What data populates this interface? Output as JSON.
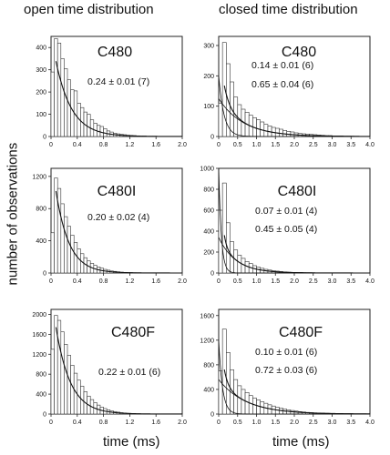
{
  "headers": {
    "left_column": "open time distribution",
    "right_column": "closed time distribution"
  },
  "axes": {
    "ylabel": "number of observations",
    "xlabel_left": "time (ms)",
    "xlabel_right": "time (ms)"
  },
  "chart_data": [
    {
      "type": "bar",
      "panel": "open-C480",
      "title": "C480",
      "annotations": [
        "0.24 ± 0.01 (7)"
      ],
      "xlim": [
        0,
        2.0
      ],
      "ylim": [
        0,
        450
      ],
      "xticks": [
        "0",
        "0.4",
        "0.8",
        "1.2",
        "1.6",
        "2.0"
      ],
      "xtick_values": [
        0,
        0.4,
        0.8,
        1.2,
        1.6,
        2.0
      ],
      "yticks": [
        "0",
        "100",
        "200",
        "300",
        "400"
      ],
      "ytick_values": [
        0,
        100,
        200,
        300,
        400
      ],
      "bin_width": 0.05,
      "values": [
        290,
        440,
        420,
        350,
        305,
        255,
        210,
        205,
        150,
        130,
        110,
        100,
        75,
        60,
        50,
        45,
        35,
        25,
        20,
        15,
        12,
        10,
        8,
        6,
        5,
        4,
        3,
        2,
        2,
        1,
        1,
        1
      ],
      "fits": [
        {
          "a": 463,
          "tau": 0.24
        }
      ]
    },
    {
      "type": "bar",
      "panel": "closed-C480",
      "title": "C480",
      "annotations": [
        "0.14 ± 0.01 (6)",
        "0.65 ± 0.04 (6)"
      ],
      "xlim": [
        0,
        4.0
      ],
      "ylim": [
        0,
        330
      ],
      "xticks": [
        "0",
        "0.5",
        "1.0",
        "1.5",
        "2.0",
        "2.5",
        "3.0",
        "3.5",
        "4.0"
      ],
      "xtick_values": [
        0,
        0.5,
        1.0,
        1.5,
        2.0,
        2.5,
        3.0,
        3.5,
        4.0
      ],
      "yticks": [
        "0",
        "100",
        "200",
        "300"
      ],
      "ytick_values": [
        0,
        100,
        200,
        300
      ],
      "bin_width": 0.1,
      "values": [
        110,
        310,
        240,
        180,
        130,
        105,
        90,
        80,
        70,
        62,
        55,
        48,
        40,
        35,
        30,
        27,
        24,
        20,
        17,
        15,
        12,
        10,
        9,
        8,
        7,
        6,
        5,
        4,
        3,
        3,
        2,
        2,
        2,
        1,
        1
      ],
      "fits": [
        {
          "a": 200,
          "tau": 0.14
        },
        {
          "a": 125,
          "tau": 0.65
        }
      ]
    },
    {
      "type": "bar",
      "panel": "open-C480I",
      "title": "C480I",
      "annotations": [
        "0.20 ± 0.02 (4)"
      ],
      "xlim": [
        0,
        2.0
      ],
      "ylim": [
        0,
        1300
      ],
      "xticks": [
        "0",
        "0.4",
        "0.8",
        "1.2",
        "1.6",
        "2.0"
      ],
      "xtick_values": [
        0,
        0.4,
        0.8,
        1.2,
        1.6,
        2.0
      ],
      "yticks": [
        "0",
        "400",
        "800",
        "1200"
      ],
      "ytick_values": [
        0,
        400,
        800,
        1200
      ],
      "bin_width": 0.05,
      "values": [
        500,
        1180,
        1050,
        860,
        700,
        580,
        470,
        380,
        300,
        240,
        190,
        150,
        120,
        95,
        75,
        60,
        45,
        35,
        25,
        20,
        15,
        10,
        8,
        6,
        4,
        3,
        2,
        1
      ],
      "fits": [
        {
          "a": 1480,
          "tau": 0.2
        }
      ]
    },
    {
      "type": "bar",
      "panel": "closed-C480I",
      "title": "C480I",
      "annotations": [
        "0.07 ± 0.01 (4)",
        "0.45 ± 0.05 (4)"
      ],
      "xlim": [
        0,
        4.0
      ],
      "ylim": [
        0,
        1000
      ],
      "xticks": [
        "0",
        "0.5",
        "1.0",
        "1.5",
        "2.0",
        "2.5",
        "3.0",
        "3.5",
        "4.0"
      ],
      "xtick_values": [
        0,
        0.5,
        1.0,
        1.5,
        2.0,
        2.5,
        3.0,
        3.5,
        4.0
      ],
      "yticks": [
        "0",
        "200",
        "400",
        "600",
        "800",
        "1000"
      ],
      "ytick_values": [
        0,
        200,
        400,
        600,
        800,
        1000
      ],
      "bin_width": 0.1,
      "values": [
        600,
        860,
        480,
        300,
        220,
        170,
        140,
        110,
        90,
        70,
        55,
        45,
        35,
        28,
        22,
        18,
        14,
        10,
        8,
        6,
        5,
        4,
        3,
        2,
        1
      ],
      "fits": [
        {
          "a": 1000,
          "tau": 0.07
        },
        {
          "a": 340,
          "tau": 0.45
        }
      ]
    },
    {
      "type": "bar",
      "panel": "open-C480F",
      "title": "C480F",
      "annotations": [
        "0.22 ± 0.01 (6)"
      ],
      "xlim": [
        0,
        2.0
      ],
      "ylim": [
        0,
        2100
      ],
      "xticks": [
        "0",
        "0.4",
        "0.8",
        "1.2",
        "1.6",
        "2.0"
      ],
      "xtick_values": [
        0,
        0.4,
        0.8,
        1.2,
        1.6,
        2.0
      ],
      "yticks": [
        "0",
        "400",
        "800",
        "1200",
        "1600",
        "2000"
      ],
      "ytick_values": [
        0,
        400,
        800,
        1200,
        1600,
        2000
      ],
      "bin_width": 0.05,
      "values": [
        1300,
        1980,
        1880,
        1650,
        1400,
        1180,
        980,
        820,
        680,
        560,
        450,
        360,
        290,
        230,
        180,
        140,
        110,
        85,
        65,
        50,
        38,
        28,
        20,
        15,
        10,
        7,
        5,
        3,
        2,
        1
      ],
      "fits": [
        {
          "a": 2450,
          "tau": 0.22
        }
      ]
    },
    {
      "type": "bar",
      "panel": "closed-C480F",
      "title": "C480F",
      "annotations": [
        "0.10 ± 0.01 (6)",
        "0.72 ± 0.03 (6)"
      ],
      "xlim": [
        0,
        4.0
      ],
      "ylim": [
        0,
        1700
      ],
      "xticks": [
        "0",
        "0.5",
        "1.0",
        "1.5",
        "2.0",
        "2.5",
        "3.0",
        "3.5",
        "4.0"
      ],
      "xtick_values": [
        0,
        0.5,
        1.0,
        1.5,
        2.0,
        2.5,
        3.0,
        3.5,
        4.0
      ],
      "yticks": [
        "0",
        "400",
        "800",
        "1200",
        "1600"
      ],
      "ytick_values": [
        0,
        400,
        800,
        1200,
        1600
      ],
      "bin_width": 0.1,
      "values": [
        700,
        1380,
        1000,
        720,
        560,
        460,
        400,
        350,
        300,
        260,
        230,
        200,
        175,
        150,
        130,
        110,
        95,
        80,
        68,
        58,
        48,
        40,
        33,
        27,
        22,
        18,
        14,
        11,
        8,
        6,
        5,
        4,
        3,
        2,
        1
      ],
      "fits": [
        {
          "a": 1200,
          "tau": 0.1
        },
        {
          "a": 560,
          "tau": 0.72
        }
      ]
    }
  ]
}
